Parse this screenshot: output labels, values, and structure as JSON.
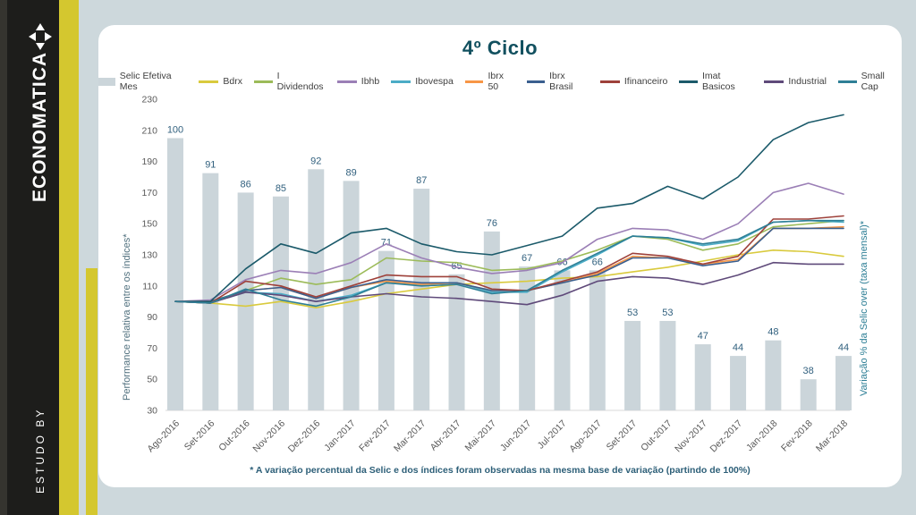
{
  "sidebar": {
    "brand": "ECONOMATICA",
    "studo_by": "ESTUDO BY"
  },
  "colors": {
    "page_background": "#cdd8dc",
    "card_background": "#ffffff",
    "brand_black": "#1d1d1b",
    "brand_yellow": "#d4c72f",
    "title_text": "#11505f",
    "footnote_text": "#2d5f78",
    "axis_tick_text": "#595959",
    "bar_data_label": "#31607e",
    "baseline": "#d9d9d9"
  },
  "chart_data": {
    "type": "combo-bar-line",
    "title": "4º Ciclo",
    "footnote": "* A variação percentual da Selic e dos índices foram observadas na mesma base de variação (partindo de 100%)",
    "legend_position": "top",
    "grid": false,
    "categories": [
      "Ago-2016",
      "Set-2016",
      "Out-2016",
      "Nov-2016",
      "Dez-2016",
      "Jan-2017",
      "Fev-2017",
      "Mar-2017",
      "Abr-2017",
      "Mai-2017",
      "Jun-2017",
      "Jul-2017",
      "Ago-2017",
      "Set-2017",
      "Out-2017",
      "Nov-2017",
      "Dez-2017",
      "Jan-2018",
      "Fev-2018",
      "Mar-2018"
    ],
    "left_axis": {
      "label": "Performance relativa entre os índices*",
      "range": [
        30,
        230
      ],
      "ticks": [
        230,
        210,
        190,
        170,
        150,
        130,
        110,
        90,
        70,
        50,
        30
      ]
    },
    "right_axis": {
      "label": "Variação % da Selic over (taxa mensal)*",
      "range": [
        30,
        110
      ],
      "ticks_visible": false
    },
    "bar_series": {
      "name": "Selic Efetiva Mes",
      "color": "#cbd5da",
      "axis": "right",
      "data_labels": true,
      "values": [
        100,
        91,
        86,
        85,
        92,
        89,
        71,
        87,
        65,
        76,
        67,
        66,
        66,
        53,
        53,
        47,
        44,
        48,
        38,
        44
      ]
    },
    "series": [
      {
        "name": "Bdrx",
        "color": "#d9ca3d",
        "values": [
          100,
          99,
          97,
          100,
          96,
          100,
          105,
          108,
          111,
          112,
          113,
          115,
          116,
          119,
          122,
          126,
          130,
          133,
          132,
          129
        ]
      },
      {
        "name": "I Dividendos",
        "color": "#9cbb59",
        "values": [
          100,
          99,
          107,
          115,
          111,
          114,
          128,
          126,
          125,
          120,
          121,
          126,
          133,
          142,
          140,
          133,
          137,
          148,
          150,
          152
        ]
      },
      {
        "name": "Ibhb",
        "color": "#9b7fb6",
        "values": [
          100,
          101,
          114,
          120,
          118,
          125,
          137,
          128,
          122,
          118,
          120,
          125,
          140,
          147,
          146,
          140,
          150,
          170,
          176,
          169
        ]
      },
      {
        "name": "Ibovespa",
        "color": "#4bacc6",
        "values": [
          100,
          99,
          106,
          105,
          100,
          104,
          112,
          111,
          112,
          106,
          106,
          119,
          130,
          142,
          141,
          136,
          139,
          151,
          152,
          151
        ]
      },
      {
        "name": "Ibrx 50",
        "color": "#f79646",
        "values": [
          100,
          100,
          107,
          109,
          102,
          109,
          113,
          111,
          112,
          107,
          107,
          112,
          118,
          129,
          128,
          124,
          127,
          147,
          147,
          148
        ]
      },
      {
        "name": "Ibrx Brasil",
        "color": "#3a5f8f",
        "values": [
          100,
          100,
          107,
          109,
          102,
          109,
          114,
          112,
          112,
          107,
          107,
          112,
          117,
          128,
          128,
          123,
          126,
          147,
          147,
          147
        ]
      },
      {
        "name": "Ifinanceiro",
        "color": "#9e413a",
        "values": [
          100,
          99,
          113,
          110,
          103,
          110,
          117,
          116,
          116,
          108,
          107,
          113,
          119,
          131,
          129,
          124,
          129,
          153,
          153,
          155
        ]
      },
      {
        "name": "Imat Basicos",
        "color": "#1b5a6a",
        "values": [
          100,
          100,
          121,
          137,
          131,
          144,
          147,
          137,
          132,
          130,
          136,
          142,
          160,
          163,
          174,
          166,
          180,
          204,
          215,
          220
        ]
      },
      {
        "name": "Industrial",
        "color": "#5f4a7a",
        "values": [
          100,
          99,
          106,
          104,
          100,
          103,
          105,
          103,
          102,
          100,
          98,
          104,
          113,
          116,
          115,
          111,
          117,
          125,
          124,
          124
        ]
      },
      {
        "name": "Small Cap",
        "color": "#2e7f96",
        "values": [
          100,
          99,
          108,
          101,
          97,
          103,
          112,
          110,
          111,
          105,
          107,
          120,
          131,
          142,
          141,
          137,
          140,
          151,
          152,
          152
        ]
      }
    ]
  }
}
